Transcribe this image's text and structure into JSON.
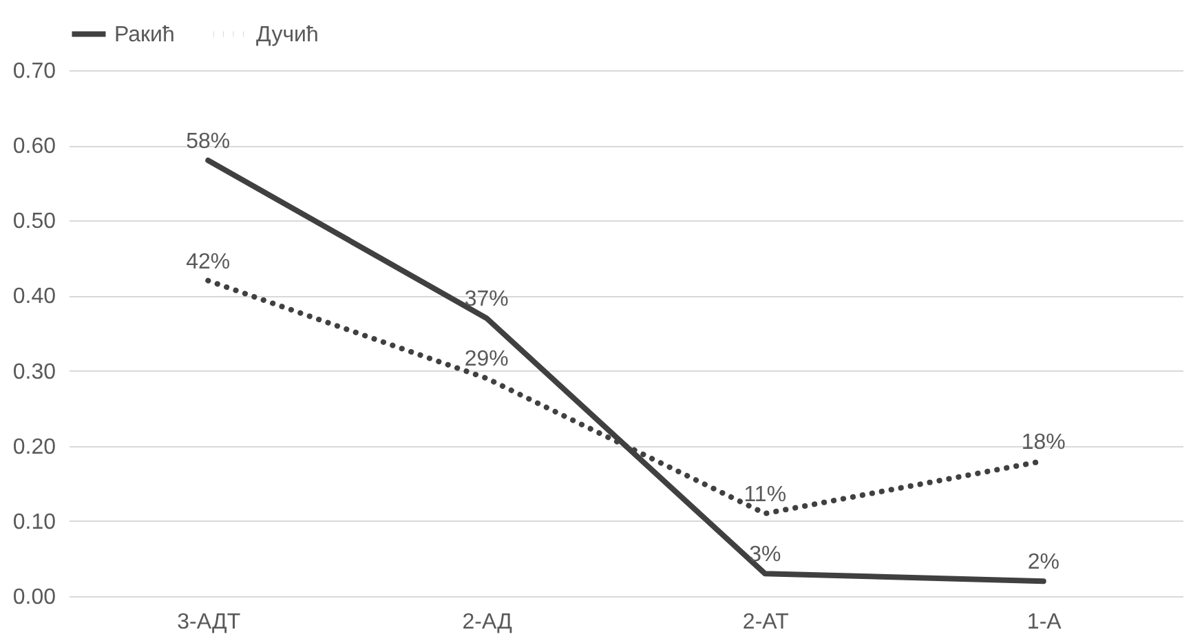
{
  "chart_data": {
    "type": "line",
    "categories": [
      "3-АДТ",
      "2-АД",
      "2-АТ",
      "1-А"
    ],
    "series": [
      {
        "name": "Ракић",
        "color": "#404040",
        "line_style": "solid",
        "values": [
          0.58,
          0.37,
          0.03,
          0.02
        ],
        "value_labels": [
          "58%",
          "37%",
          "3%",
          "2%"
        ]
      },
      {
        "name": "Дучић",
        "color": "#404040",
        "line_style": "dotted",
        "values": [
          0.42,
          0.29,
          0.11,
          0.18
        ],
        "value_labels": [
          "42%",
          "29%",
          "11%",
          "18%"
        ]
      }
    ],
    "ylim": [
      0,
      0.7
    ],
    "yticks": [
      {
        "value": 0,
        "label": "0.00"
      },
      {
        "value": 0.1,
        "label": "0.10"
      },
      {
        "value": 0.2,
        "label": "0.20"
      },
      {
        "value": 0.3,
        "label": "0.30"
      },
      {
        "value": 0.4,
        "label": "0.40"
      },
      {
        "value": 0.5,
        "label": "0.50"
      },
      {
        "value": 0.6,
        "label": "0.60"
      },
      {
        "value": 0.7,
        "label": "0.70"
      }
    ],
    "grid": "y",
    "legend": "top",
    "marker": "none"
  }
}
